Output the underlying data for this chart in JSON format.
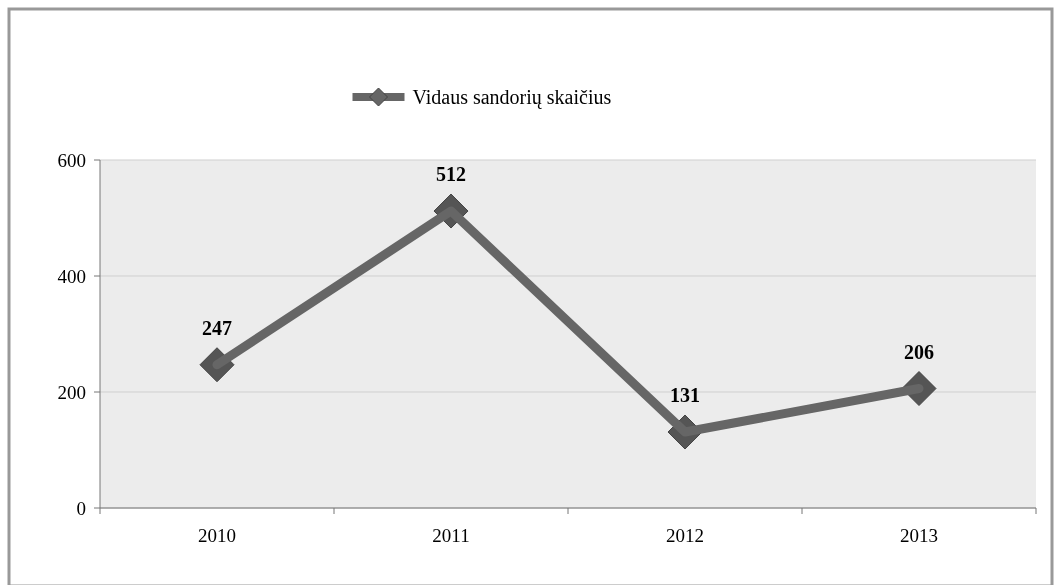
{
  "chart_data": {
    "type": "line",
    "categories": [
      "2010",
      "2011",
      "2012",
      "2013"
    ],
    "series": [
      {
        "name": "Vidaus sandorių skaičius",
        "color": "#666666",
        "values": [
          247,
          512,
          131,
          206
        ]
      }
    ],
    "ylim": [
      0,
      600
    ],
    "yticks": [
      0,
      200,
      400,
      600
    ],
    "grid": "y",
    "legend": "top",
    "marker": "diamond",
    "line_style": "solid",
    "data_labels": true
  }
}
